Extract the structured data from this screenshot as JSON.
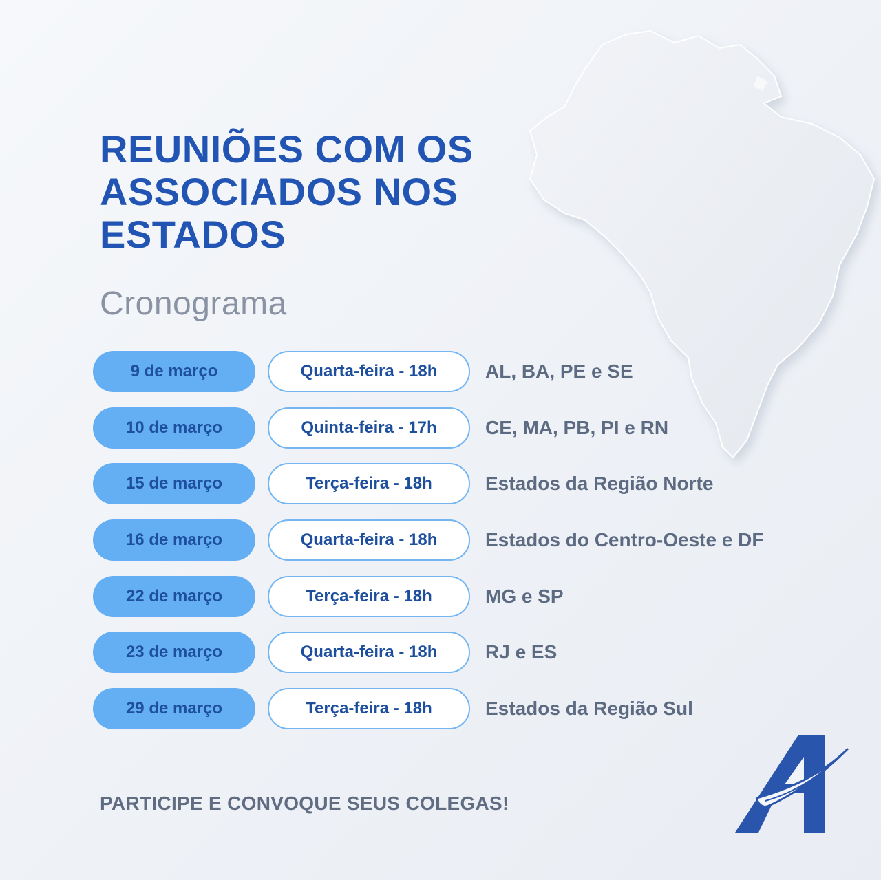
{
  "header": {
    "title_lines": [
      "REUNIÕES COM OS",
      "ASSOCIADOS NOS",
      "ESTADOS"
    ],
    "subtitle": "Cronograma"
  },
  "schedule": [
    {
      "date": "9 de março",
      "day": "Quarta-feira - 18h",
      "states": "AL, BA, PE e SE"
    },
    {
      "date": "10 de março",
      "day": "Quinta-feira - 17h",
      "states": "CE, MA, PB, PI e RN"
    },
    {
      "date": "15 de março",
      "day": "Terça-feira - 18h",
      "states": "Estados da Região Norte"
    },
    {
      "date": "16 de março",
      "day": "Quarta-feira - 18h",
      "states": "Estados do Centro-Oeste e DF"
    },
    {
      "date": "22 de março",
      "day": "Terça-feira - 18h",
      "states": "MG e SP"
    },
    {
      "date": "23 de março",
      "day": "Quarta-feira - 18h",
      "states": "RJ e ES"
    },
    {
      "date": "29 de março",
      "day": "Terça-feira - 18h",
      "states": "Estados da Região Sul"
    }
  ],
  "footer": {
    "cta": "PARTICIPE E CONVOQUE SEUS COLEGAS!"
  },
  "colors": {
    "title": "#2255b3",
    "date_pill": "#64aef4",
    "day_pill_border": "#74b6f2",
    "states_text": "#5d6b82"
  },
  "icons": {
    "map": "brazil-map-icon",
    "logo": "letter-a-logo-icon"
  }
}
